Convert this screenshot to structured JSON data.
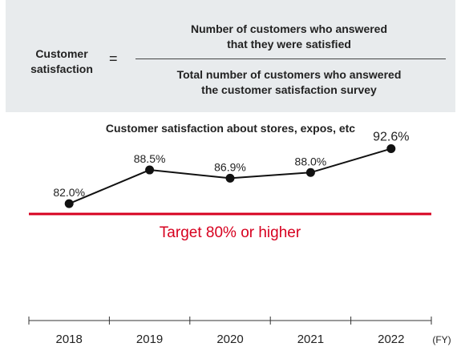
{
  "formula": {
    "lhs_line1": "Customer",
    "lhs_line2": "satisfaction",
    "equals": "=",
    "numerator_line1": "Number of customers who answered",
    "numerator_line2": "that they were satisfied",
    "denominator_line1": "Total number of customers who answered",
    "denominator_line2": "the customer satisfaction survey"
  },
  "colors": {
    "target_line": "#d7001f",
    "series": "#111111",
    "formula_background": "#e8ebed"
  },
  "chart_data": {
    "type": "line",
    "title": "Customer satisfaction about stores, expos, etc",
    "categories": [
      "2018",
      "2019",
      "2020",
      "2021",
      "2022"
    ],
    "x_unit": "(FY)",
    "series": [
      {
        "values": [
          82.0,
          88.5,
          86.9,
          88.0,
          92.6
        ],
        "labels": [
          "82.0%",
          "88.5%",
          "86.9%",
          "88.0%",
          "92.6%"
        ]
      }
    ],
    "target": {
      "value": 80,
      "label": "Target 80% or higher"
    },
    "ylim": [
      78,
      95
    ],
    "grid": false,
    "legend": "none"
  }
}
